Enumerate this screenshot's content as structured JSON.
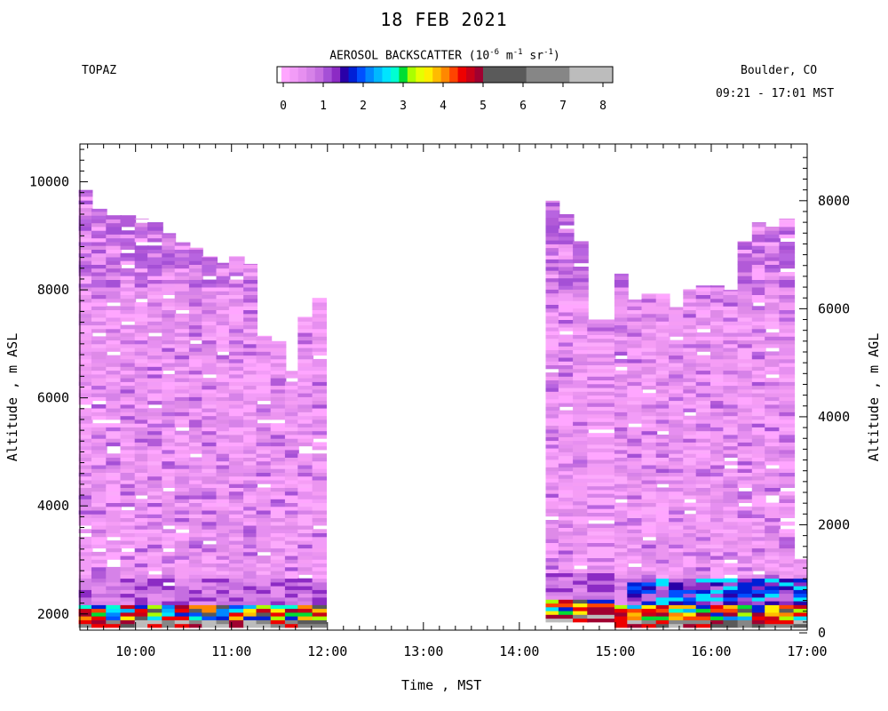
{
  "header": {
    "title": "18 FEB 2021",
    "instrument": "TOPAZ",
    "location": "Boulder, CO",
    "time_range": "09:21 - 17:01 MST"
  },
  "colorbar": {
    "title_pre": "AEROSOL BACKSCATTER (10",
    "exp1": "-6",
    "mid1": " m",
    "exp2": "-1",
    "mid2": " sr",
    "exp3": "-1",
    "title_post": ")",
    "ticks": [
      "0",
      "1",
      "2",
      "3",
      "4",
      "5",
      "6",
      "7",
      "8"
    ],
    "colors": [
      "#ffa6ff",
      "#f29cf7",
      "#e68ff0",
      "#d682e8",
      "#c56ee0",
      "#a550d6",
      "#8c2bc4",
      "#2a00a8",
      "#0020d6",
      "#0050ff",
      "#0088ff",
      "#00b8ff",
      "#00e4ff",
      "#00ffd2",
      "#00dd33",
      "#aaff00",
      "#e6ff00",
      "#ffee00",
      "#ffbb00",
      "#ff8800",
      "#ff4400",
      "#ee0000",
      "#c80018",
      "#a00030",
      "#5a5a5a",
      "#868686",
      "#bcbcbc"
    ],
    "major_colors": 24,
    "gray_segments": 3
  },
  "chart_data": {
    "type": "heatmap",
    "title": "18 FEB 2021",
    "xlabel": "Time , MST",
    "ylabel": "Altitude , m ASL",
    "y2label": "Altitude , m AGL",
    "x_ticks": [
      "10:00",
      "11:00",
      "12:00",
      "13:00",
      "14:00",
      "15:00",
      "16:00",
      "17:00"
    ],
    "x_range_hours": [
      9.42,
      17.0
    ],
    "y_ticks": [
      2000,
      4000,
      6000,
      8000,
      10000
    ],
    "y_range_m_asl": [
      1700,
      10700
    ],
    "y2_ticks": [
      0,
      2000,
      4000,
      6000,
      8000
    ],
    "y2_offset_m": 1650,
    "value_units": "10^-6 m^-1 sr^-1",
    "value_range": [
      0,
      8
    ],
    "profiles": [
      {
        "t": "09:25",
        "bottom": 1750,
        "top": 9850
      },
      {
        "t": "09:33",
        "bottom": 1750,
        "top": 9500
      },
      {
        "t": "09:42",
        "bottom": 1750,
        "top": 9380
      },
      {
        "t": "09:51",
        "bottom": 1750,
        "top": 9380
      },
      {
        "t": "10:00",
        "bottom": 1750,
        "top": 9320
      },
      {
        "t": "10:08",
        "bottom": 1750,
        "top": 9250
      },
      {
        "t": "10:17",
        "bottom": 1750,
        "top": 9050
      },
      {
        "t": "10:25",
        "bottom": 1750,
        "top": 8880
      },
      {
        "t": "10:34",
        "bottom": 1750,
        "top": 8780
      },
      {
        "t": "10:42",
        "bottom": 1750,
        "top": 8620
      },
      {
        "t": "10:51",
        "bottom": 1750,
        "top": 8500
      },
      {
        "t": "10:59",
        "bottom": 1750,
        "top": 8620
      },
      {
        "t": "11:08",
        "bottom": 1750,
        "top": 8480
      },
      {
        "t": "11:16",
        "bottom": 1750,
        "top": 7150
      },
      {
        "t": "11:25",
        "bottom": 1750,
        "top": 7050
      },
      {
        "t": "11:34",
        "bottom": 1750,
        "top": 6500
      },
      {
        "t": "11:42",
        "bottom": 1750,
        "top": 7500
      },
      {
        "t": "11:51",
        "bottom": 1750,
        "top": 7850
      },
      {
        "t": "14:17",
        "bottom": 1850,
        "top": 9650
      },
      {
        "t": "14:25",
        "bottom": 1850,
        "top": 9400
      },
      {
        "t": "14:34",
        "bottom": 1850,
        "top": 8900
      },
      {
        "t": "14:43",
        "bottom": 1850,
        "top": 7450
      },
      {
        "t": "15:00",
        "bottom": 1750,
        "top": 8300
      },
      {
        "t": "15:08",
        "bottom": 1750,
        "top": 7820
      },
      {
        "t": "15:17",
        "bottom": 1750,
        "top": 7930
      },
      {
        "t": "15:26",
        "bottom": 1750,
        "top": 7930
      },
      {
        "t": "15:34",
        "bottom": 1750,
        "top": 7680
      },
      {
        "t": "15:43",
        "bottom": 1750,
        "top": 8010
      },
      {
        "t": "15:51",
        "bottom": 1750,
        "top": 8080
      },
      {
        "t": "16:00",
        "bottom": 1750,
        "top": 8080
      },
      {
        "t": "16:08",
        "bottom": 1750,
        "top": 8000
      },
      {
        "t": "16:17",
        "bottom": 1750,
        "top": 8900
      },
      {
        "t": "16:26",
        "bottom": 1750,
        "top": 9250
      },
      {
        "t": "16:34",
        "bottom": 1750,
        "top": 9170
      },
      {
        "t": "16:43",
        "bottom": 1750,
        "top": 9320
      },
      {
        "t": "16:52",
        "bottom": 1750,
        "top": 3020
      }
    ]
  }
}
